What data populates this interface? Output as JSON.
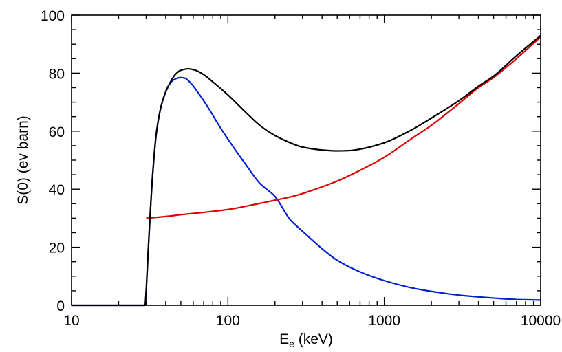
{
  "chart_data": {
    "type": "line",
    "xscale": "log",
    "xlim": [
      10,
      10000
    ],
    "ylim": [
      0,
      100
    ],
    "xlabel_main": "E",
    "xlabel_sub": "e",
    "xlabel_unit": " (keV)",
    "ylabel": "S(0)  (ev barn)",
    "xticks": [
      10,
      100,
      1000,
      10000
    ],
    "xtick_labels": [
      "10",
      "100",
      "1000",
      "10000"
    ],
    "yticks": [
      0,
      20,
      40,
      60,
      80,
      100
    ],
    "ytick_labels": [
      "0",
      "20",
      "40",
      "60",
      "80",
      "100"
    ],
    "grid": false,
    "series": [
      {
        "color": "#0020d0",
        "x": [
          10,
          29.5,
          30,
          31,
          33,
          35,
          38,
          42,
          46,
          50,
          53,
          58,
          65,
          75,
          90,
          110,
          130,
          160,
          200,
          250,
          300,
          400,
          500,
          700,
          1000,
          1500,
          2000,
          3000,
          5000,
          7000,
          10000
        ],
        "y": [
          0,
          0,
          5,
          20,
          45,
          60,
          70,
          76,
          78,
          78.5,
          78.3,
          76.5,
          73,
          68,
          61,
          54,
          48.5,
          42,
          37.5,
          29.5,
          25.5,
          19.5,
          15.5,
          11.5,
          8.5,
          6,
          4.8,
          3.5,
          2.5,
          2,
          1.8
        ]
      },
      {
        "color": "#e00000",
        "x": [
          30,
          40,
          50,
          70,
          100,
          150,
          200,
          250,
          300,
          400,
          500,
          700,
          1000,
          1500,
          2000,
          3000,
          4000,
          5000,
          7000,
          10000
        ],
        "y": [
          30,
          30.6,
          31.2,
          32,
          33,
          34.8,
          36.2,
          37.3,
          38.5,
          40.8,
          42.8,
          46.5,
          51,
          57.5,
          62,
          69.5,
          75,
          78.5,
          85,
          92.5
        ]
      },
      {
        "color": "#000000",
        "x": [
          10,
          29.5,
          30,
          31,
          33,
          35,
          38,
          42,
          46,
          50,
          56,
          62,
          70,
          80,
          100,
          130,
          160,
          200,
          250,
          300,
          400,
          500,
          600,
          700,
          1000,
          1500,
          2000,
          3000,
          4000,
          5000,
          7000,
          10000
        ],
        "y": [
          0,
          0,
          5,
          20,
          45,
          60,
          70,
          76,
          79.5,
          81,
          81.5,
          81,
          79.5,
          77,
          72.5,
          66.5,
          62,
          58.5,
          56,
          54.5,
          53.5,
          53.2,
          53.3,
          53.8,
          56,
          60.5,
          64.5,
          70.5,
          75.5,
          79,
          86,
          93
        ]
      }
    ]
  }
}
